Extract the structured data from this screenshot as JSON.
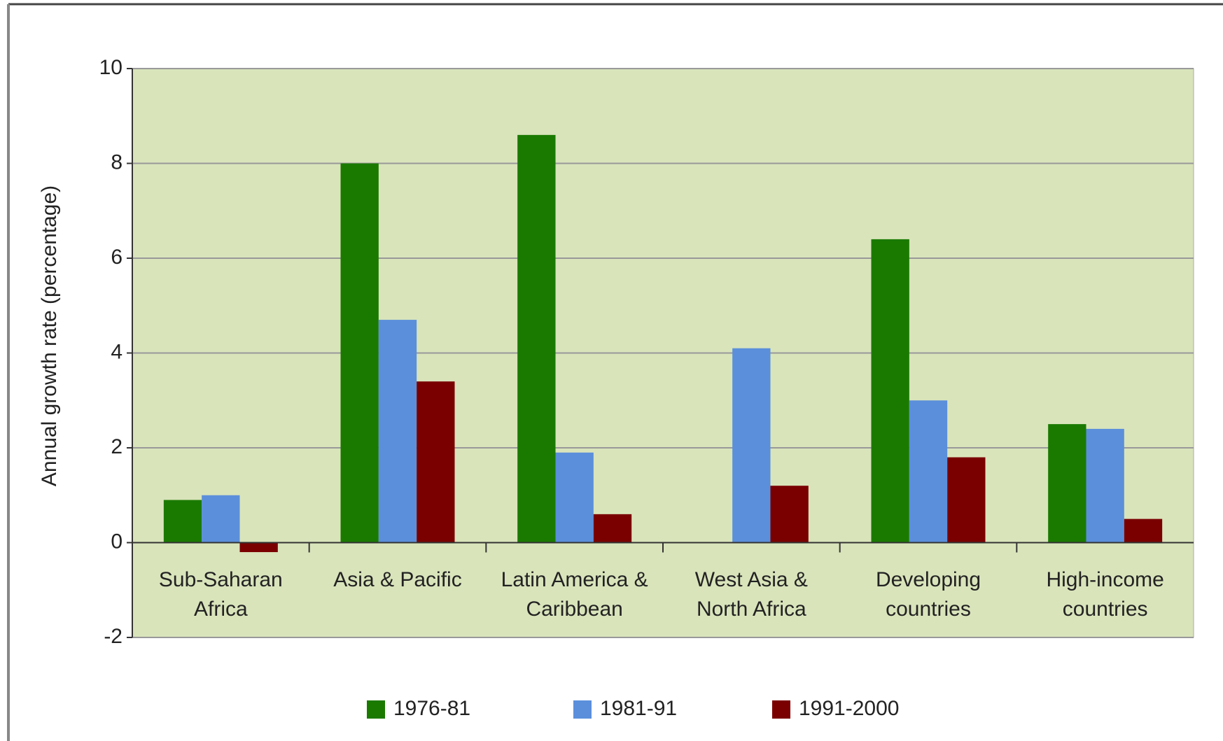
{
  "chart_data": {
    "type": "bar",
    "y_label": "Annual growth rate (percentage)",
    "categories": [
      "Sub-Saharan Africa",
      "Asia & Pacific",
      "Latin America & Caribbean",
      "West Asia & North Africa",
      "Developing countries",
      "High-income countries"
    ],
    "series": [
      {
        "name": "1976-81",
        "color": "#1a7a00",
        "values": [
          0.9,
          8.0,
          8.6,
          0,
          6.4,
          2.5
        ]
      },
      {
        "name": "1981-91",
        "color": "#5b8fdb",
        "values": [
          1.0,
          4.7,
          1.9,
          4.1,
          3.0,
          2.4
        ]
      },
      {
        "name": "1991-2000",
        "color": "#7a0000",
        "values": [
          -0.2,
          3.4,
          0.6,
          1.2,
          1.8,
          0.5
        ]
      }
    ],
    "ylim": [
      -2,
      10
    ],
    "yticks": [
      -2,
      0,
      2,
      4,
      6,
      8,
      10
    ],
    "grid": true,
    "legend": "bottom"
  }
}
